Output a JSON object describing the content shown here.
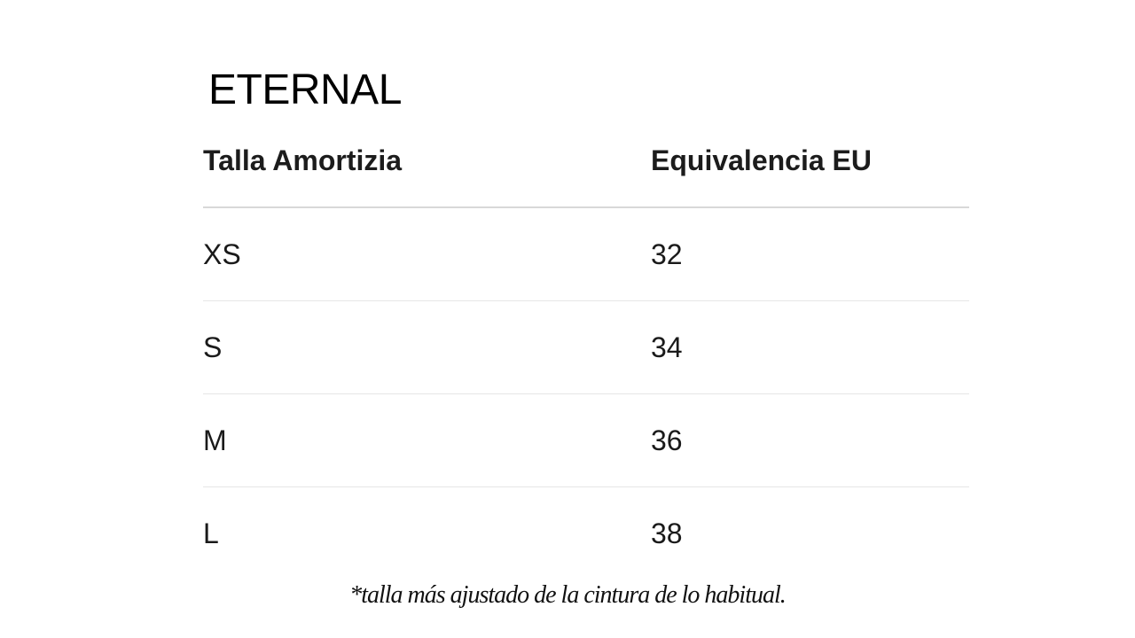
{
  "title": "ETERNAL",
  "table": {
    "headers": [
      "Talla Amortizia",
      "Equivalencia EU"
    ],
    "rows": [
      [
        "XS",
        "32"
      ],
      [
        "S",
        "34"
      ],
      [
        "M",
        "36"
      ],
      [
        "L",
        "38"
      ]
    ]
  },
  "footnote": "*talla más ajustado de la cintura de lo habitual."
}
